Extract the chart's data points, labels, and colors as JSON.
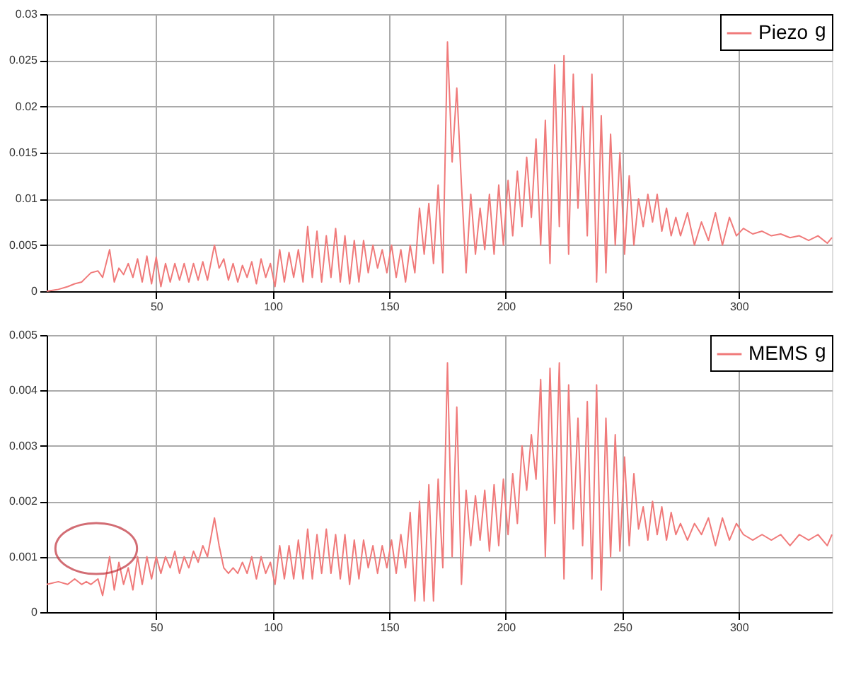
{
  "chart_data": [
    {
      "type": "line",
      "legend": "top right",
      "legend_title": "g",
      "grid": true,
      "xlim": [
        3,
        340
      ],
      "xticks": [
        50,
        100,
        150,
        200,
        250,
        300
      ],
      "ylim": [
        0,
        0.03
      ],
      "yticks": [
        0,
        0.005,
        0.01,
        0.015,
        0.02,
        0.025,
        0.03
      ],
      "series": [
        {
          "name": "Piezo",
          "color": "#f07a7a",
          "x": [
            3,
            8,
            12,
            15,
            18,
            20,
            22,
            25,
            27,
            30,
            32,
            34,
            36,
            38,
            40,
            42,
            44,
            46,
            48,
            50,
            52,
            54,
            56,
            58,
            60,
            62,
            64,
            66,
            68,
            70,
            72,
            75,
            77,
            79,
            81,
            83,
            85,
            87,
            89,
            91,
            93,
            95,
            97,
            99,
            101,
            103,
            105,
            107,
            109,
            111,
            113,
            115,
            117,
            119,
            121,
            123,
            125,
            127,
            129,
            131,
            133,
            135,
            137,
            139,
            141,
            143,
            145,
            147,
            149,
            151,
            153,
            155,
            157,
            159,
            161,
            163,
            165,
            167,
            169,
            171,
            173,
            175,
            177,
            179,
            181,
            183,
            185,
            187,
            189,
            191,
            193,
            195,
            197,
            199,
            201,
            203,
            205,
            207,
            209,
            211,
            213,
            215,
            217,
            219,
            221,
            223,
            225,
            227,
            229,
            231,
            233,
            235,
            237,
            239,
            241,
            243,
            245,
            247,
            249,
            251,
            253,
            255,
            257,
            259,
            261,
            263,
            265,
            267,
            269,
            271,
            273,
            275,
            278,
            281,
            284,
            287,
            290,
            293,
            296,
            299,
            302,
            306,
            310,
            314,
            318,
            322,
            326,
            330,
            334,
            338,
            340
          ],
          "values": [
            0,
            0.0002,
            0.0005,
            0.0008,
            0.001,
            0.0015,
            0.002,
            0.0022,
            0.0015,
            0.0045,
            0.001,
            0.0025,
            0.0018,
            0.003,
            0.0015,
            0.0035,
            0.001,
            0.0038,
            0.0008,
            0.0037,
            0.0005,
            0.003,
            0.001,
            0.003,
            0.0012,
            0.003,
            0.001,
            0.003,
            0.0012,
            0.0032,
            0.0012,
            0.005,
            0.0025,
            0.0035,
            0.0012,
            0.003,
            0.001,
            0.0028,
            0.0015,
            0.0032,
            0.0008,
            0.0035,
            0.0015,
            0.003,
            0.0005,
            0.0045,
            0.001,
            0.0042,
            0.0015,
            0.0045,
            0.001,
            0.007,
            0.0015,
            0.0065,
            0.001,
            0.006,
            0.0015,
            0.0068,
            0.001,
            0.006,
            0.0008,
            0.0055,
            0.001,
            0.0055,
            0.002,
            0.005,
            0.0025,
            0.0045,
            0.002,
            0.005,
            0.0015,
            0.0045,
            0.001,
            0.005,
            0.002,
            0.009,
            0.004,
            0.0095,
            0.003,
            0.0115,
            0.002,
            0.027,
            0.014,
            0.022,
            0.0115,
            0.002,
            0.0105,
            0.004,
            0.009,
            0.0045,
            0.0105,
            0.004,
            0.0115,
            0.005,
            0.012,
            0.006,
            0.013,
            0.007,
            0.0145,
            0.008,
            0.0165,
            0.005,
            0.0185,
            0.003,
            0.0245,
            0.007,
            0.0255,
            0.004,
            0.0235,
            0.009,
            0.02,
            0.006,
            0.0235,
            0.001,
            0.019,
            0.002,
            0.017,
            0.005,
            0.015,
            0.004,
            0.0125,
            0.005,
            0.01,
            0.007,
            0.0105,
            0.0075,
            0.0105,
            0.0065,
            0.009,
            0.006,
            0.008,
            0.006,
            0.0085,
            0.005,
            0.0075,
            0.0055,
            0.0085,
            0.005,
            0.008,
            0.006,
            0.0068,
            0.0062,
            0.0065,
            0.006,
            0.0062,
            0.0058,
            0.006,
            0.0055,
            0.006,
            0.0052,
            0.0058
          ]
        }
      ]
    },
    {
      "type": "line",
      "legend": "top right",
      "legend_title": "g",
      "grid": true,
      "xlim": [
        3,
        340
      ],
      "xticks": [
        50,
        100,
        150,
        200,
        250,
        300
      ],
      "ylim": [
        0,
        0.005
      ],
      "yticks": [
        0,
        0.001,
        0.002,
        0.003,
        0.004,
        0.005
      ],
      "series": [
        {
          "name": "MEMS",
          "color": "#f07a7a",
          "x": [
            3,
            8,
            12,
            15,
            18,
            20,
            22,
            25,
            27,
            30,
            32,
            34,
            36,
            38,
            40,
            42,
            44,
            46,
            48,
            50,
            52,
            54,
            56,
            58,
            60,
            62,
            64,
            66,
            68,
            70,
            72,
            75,
            77,
            79,
            81,
            83,
            85,
            87,
            89,
            91,
            93,
            95,
            97,
            99,
            101,
            103,
            105,
            107,
            109,
            111,
            113,
            115,
            117,
            119,
            121,
            123,
            125,
            127,
            129,
            131,
            133,
            135,
            137,
            139,
            141,
            143,
            145,
            147,
            149,
            151,
            153,
            155,
            157,
            159,
            161,
            163,
            165,
            167,
            169,
            171,
            173,
            175,
            177,
            179,
            181,
            183,
            185,
            187,
            189,
            191,
            193,
            195,
            197,
            199,
            201,
            203,
            205,
            207,
            209,
            211,
            213,
            215,
            217,
            219,
            221,
            223,
            225,
            227,
            229,
            231,
            233,
            235,
            237,
            239,
            241,
            243,
            245,
            247,
            249,
            251,
            253,
            255,
            257,
            259,
            261,
            263,
            265,
            267,
            269,
            271,
            273,
            275,
            278,
            281,
            284,
            287,
            290,
            293,
            296,
            299,
            302,
            306,
            310,
            314,
            318,
            322,
            326,
            330,
            334,
            338,
            340
          ],
          "values": [
            0.0005,
            0.00055,
            0.0005,
            0.0006,
            0.0005,
            0.00055,
            0.0005,
            0.0006,
            0.0003,
            0.001,
            0.0004,
            0.0009,
            0.0005,
            0.0008,
            0.0004,
            0.001,
            0.0005,
            0.001,
            0.0006,
            0.001,
            0.0007,
            0.001,
            0.0008,
            0.0011,
            0.0007,
            0.001,
            0.0008,
            0.0011,
            0.0009,
            0.0012,
            0.001,
            0.0017,
            0.0012,
            0.0008,
            0.0007,
            0.0008,
            0.0007,
            0.0009,
            0.0007,
            0.001,
            0.0006,
            0.001,
            0.0007,
            0.0009,
            0.0005,
            0.0012,
            0.0006,
            0.0012,
            0.0006,
            0.0013,
            0.0006,
            0.0015,
            0.0006,
            0.0014,
            0.0007,
            0.0015,
            0.0007,
            0.0014,
            0.0006,
            0.0014,
            0.0005,
            0.0013,
            0.0006,
            0.0013,
            0.0008,
            0.0012,
            0.0007,
            0.0012,
            0.0008,
            0.0013,
            0.0007,
            0.0014,
            0.0008,
            0.0018,
            0.0002,
            0.002,
            0.0002,
            0.0023,
            0.0002,
            0.0024,
            0.0008,
            0.0045,
            0.001,
            0.0037,
            0.0005,
            0.0022,
            0.0012,
            0.0021,
            0.0013,
            0.0022,
            0.0011,
            0.0023,
            0.0012,
            0.0024,
            0.0014,
            0.0025,
            0.0016,
            0.003,
            0.0022,
            0.0032,
            0.0024,
            0.0042,
            0.001,
            0.0044,
            0.0016,
            0.0045,
            0.0006,
            0.0041,
            0.0015,
            0.0035,
            0.0012,
            0.0038,
            0.0006,
            0.0041,
            0.0004,
            0.0035,
            0.001,
            0.0032,
            0.0011,
            0.0028,
            0.0012,
            0.0025,
            0.0015,
            0.0019,
            0.0013,
            0.002,
            0.0014,
            0.0019,
            0.0013,
            0.0018,
            0.0014,
            0.0016,
            0.0013,
            0.0016,
            0.0014,
            0.0017,
            0.0012,
            0.0017,
            0.0013,
            0.0016,
            0.0014,
            0.0013,
            0.0014,
            0.0013,
            0.0014,
            0.0012,
            0.0014,
            0.0013,
            0.0014,
            0.0012,
            0.0014
          ]
        }
      ]
    }
  ]
}
